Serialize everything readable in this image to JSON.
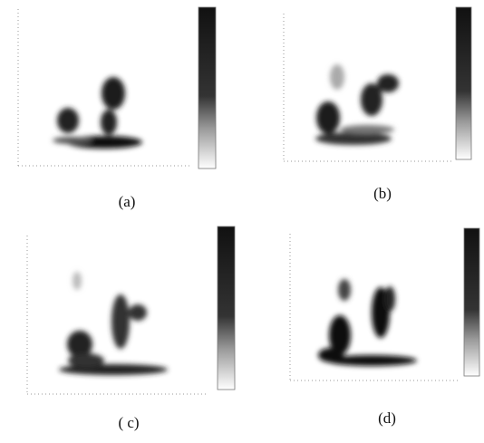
{
  "panels": [
    {
      "caption": "(a)"
    },
    {
      "caption": "(b)"
    },
    {
      "caption": "( c)"
    },
    {
      "caption": "(d)"
    }
  ]
}
